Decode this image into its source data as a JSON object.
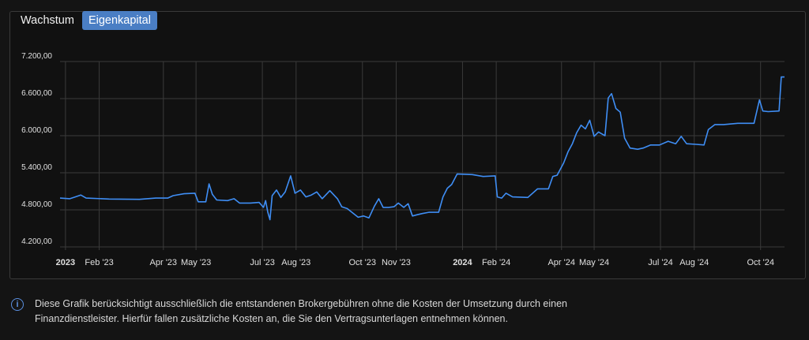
{
  "tabs": [
    {
      "label": "Wachstum",
      "active": false
    },
    {
      "label": "Eigenkapital",
      "active": true
    }
  ],
  "colors": {
    "line": "#3f8ef5",
    "grid": "#3a3a3a",
    "accent": "#4a7ec4",
    "info": "#5b8fe0"
  },
  "info": {
    "icon": "info-circle-icon",
    "text": "Diese Grafik berücksichtigt ausschließlich die entstandenen Brokergebühren ohne die Kosten der Umsetzung durch einen Finanzdienstleister. Hierfür fallen zusätzliche Kosten an, die Sie den Vertragsunterlagen entnehmen können."
  },
  "chart_data": {
    "type": "line",
    "title": "",
    "xlabel": "",
    "ylabel": "",
    "ylim": [
      4200,
      7200
    ],
    "xlim": [
      "2022-12-27",
      "2024-10-23"
    ],
    "grid": true,
    "y_ticks": [
      {
        "value": 4200,
        "label": "4.200,00"
      },
      {
        "value": 4800,
        "label": "4.800,00"
      },
      {
        "value": 5400,
        "label": "5.400,00"
      },
      {
        "value": 6000,
        "label": "6.000,00"
      },
      {
        "value": 6600,
        "label": "6.600,00"
      },
      {
        "value": 7200,
        "label": "7.200,00"
      }
    ],
    "x_ticks": [
      {
        "date": "2023-01-01",
        "label": "2023",
        "bold": true
      },
      {
        "date": "2023-02-01",
        "label": "Feb '23"
      },
      {
        "date": "2023-04-01",
        "label": "Apr '23"
      },
      {
        "date": "2023-05-01",
        "label": "May '23"
      },
      {
        "date": "2023-07-01",
        "label": "Jul '23"
      },
      {
        "date": "2023-08-01",
        "label": "Aug '23"
      },
      {
        "date": "2023-10-01",
        "label": "Oct '23"
      },
      {
        "date": "2023-11-01",
        "label": "Nov '23"
      },
      {
        "date": "2024-01-01",
        "label": "2024",
        "bold": true
      },
      {
        "date": "2024-02-01",
        "label": "Feb '24"
      },
      {
        "date": "2024-04-01",
        "label": "Apr '24"
      },
      {
        "date": "2024-05-01",
        "label": "May '24"
      },
      {
        "date": "2024-07-01",
        "label": "Jul '24"
      },
      {
        "date": "2024-08-01",
        "label": "Aug '24"
      },
      {
        "date": "2024-10-01",
        "label": "Oct '24"
      }
    ],
    "series": [
      {
        "points": [
          [
            "2022-12-27",
            4990
          ],
          [
            "2023-01-05",
            4980
          ],
          [
            "2023-01-10",
            5010
          ],
          [
            "2023-01-15",
            5040
          ],
          [
            "2023-01-20",
            4990
          ],
          [
            "2023-02-10",
            4975
          ],
          [
            "2023-03-10",
            4970
          ],
          [
            "2023-03-25",
            4990
          ],
          [
            "2023-04-05",
            4990
          ],
          [
            "2023-04-10",
            5030
          ],
          [
            "2023-04-20",
            5060
          ],
          [
            "2023-04-30",
            5070
          ],
          [
            "2023-05-03",
            4930
          ],
          [
            "2023-05-10",
            4930
          ],
          [
            "2023-05-13",
            5220
          ],
          [
            "2023-05-16",
            5050
          ],
          [
            "2023-05-20",
            4960
          ],
          [
            "2023-05-30",
            4950
          ],
          [
            "2023-06-05",
            4980
          ],
          [
            "2023-06-10",
            4910
          ],
          [
            "2023-06-20",
            4910
          ],
          [
            "2023-06-28",
            4920
          ],
          [
            "2023-07-02",
            4840
          ],
          [
            "2023-07-04",
            4950
          ],
          [
            "2023-07-06",
            4760
          ],
          [
            "2023-07-08",
            4640
          ],
          [
            "2023-07-10",
            5030
          ],
          [
            "2023-07-14",
            5120
          ],
          [
            "2023-07-18",
            5000
          ],
          [
            "2023-07-22",
            5090
          ],
          [
            "2023-07-27",
            5350
          ],
          [
            "2023-07-31",
            5070
          ],
          [
            "2023-08-05",
            5120
          ],
          [
            "2023-08-10",
            5010
          ],
          [
            "2023-08-15",
            5040
          ],
          [
            "2023-08-20",
            5090
          ],
          [
            "2023-08-25",
            4980
          ],
          [
            "2023-09-01",
            5110
          ],
          [
            "2023-09-08",
            4980
          ],
          [
            "2023-09-12",
            4850
          ],
          [
            "2023-09-17",
            4820
          ],
          [
            "2023-09-22",
            4750
          ],
          [
            "2023-09-27",
            4680
          ],
          [
            "2023-10-02",
            4700
          ],
          [
            "2023-10-07",
            4670
          ],
          [
            "2023-10-12",
            4860
          ],
          [
            "2023-10-16",
            4980
          ],
          [
            "2023-10-20",
            4840
          ],
          [
            "2023-10-25",
            4840
          ],
          [
            "2023-10-30",
            4850
          ],
          [
            "2023-11-03",
            4910
          ],
          [
            "2023-11-08",
            4840
          ],
          [
            "2023-11-12",
            4900
          ],
          [
            "2023-11-16",
            4700
          ],
          [
            "2023-11-20",
            4720
          ],
          [
            "2023-11-25",
            4740
          ],
          [
            "2023-12-01",
            4760
          ],
          [
            "2023-12-10",
            4760
          ],
          [
            "2023-12-14",
            5010
          ],
          [
            "2023-12-18",
            5150
          ],
          [
            "2023-12-22",
            5210
          ],
          [
            "2023-12-27",
            5380
          ],
          [
            "2024-01-10",
            5370
          ],
          [
            "2024-01-20",
            5340
          ],
          [
            "2024-01-31",
            5350
          ],
          [
            "2024-02-02",
            5010
          ],
          [
            "2024-02-06",
            4990
          ],
          [
            "2024-02-10",
            5070
          ],
          [
            "2024-02-16",
            5010
          ],
          [
            "2024-03-01",
            5000
          ],
          [
            "2024-03-10",
            5140
          ],
          [
            "2024-03-20",
            5140
          ],
          [
            "2024-03-24",
            5340
          ],
          [
            "2024-03-28",
            5360
          ],
          [
            "2024-04-03",
            5560
          ],
          [
            "2024-04-07",
            5740
          ],
          [
            "2024-04-11",
            5870
          ],
          [
            "2024-04-15",
            6050
          ],
          [
            "2024-04-19",
            6170
          ],
          [
            "2024-04-23",
            6110
          ],
          [
            "2024-04-27",
            6250
          ],
          [
            "2024-05-01",
            5990
          ],
          [
            "2024-05-05",
            6060
          ],
          [
            "2024-05-08",
            6030
          ],
          [
            "2024-05-11",
            6000
          ],
          [
            "2024-05-14",
            6610
          ],
          [
            "2024-05-17",
            6680
          ],
          [
            "2024-05-21",
            6440
          ],
          [
            "2024-05-25",
            6380
          ],
          [
            "2024-05-29",
            5960
          ],
          [
            "2024-06-03",
            5800
          ],
          [
            "2024-06-10",
            5780
          ],
          [
            "2024-06-15",
            5800
          ],
          [
            "2024-06-22",
            5850
          ],
          [
            "2024-06-30",
            5850
          ],
          [
            "2024-07-08",
            5910
          ],
          [
            "2024-07-15",
            5870
          ],
          [
            "2024-07-20",
            5990
          ],
          [
            "2024-07-25",
            5870
          ],
          [
            "2024-08-03",
            5860
          ],
          [
            "2024-08-10",
            5850
          ],
          [
            "2024-08-14",
            6100
          ],
          [
            "2024-08-20",
            6180
          ],
          [
            "2024-08-28",
            6180
          ],
          [
            "2024-09-10",
            6200
          ],
          [
            "2024-09-25",
            6200
          ],
          [
            "2024-09-30",
            6580
          ],
          [
            "2024-10-03",
            6400
          ],
          [
            "2024-10-08",
            6390
          ],
          [
            "2024-10-18",
            6400
          ],
          [
            "2024-10-20",
            6950
          ],
          [
            "2024-10-23",
            6950
          ]
        ]
      }
    ]
  }
}
